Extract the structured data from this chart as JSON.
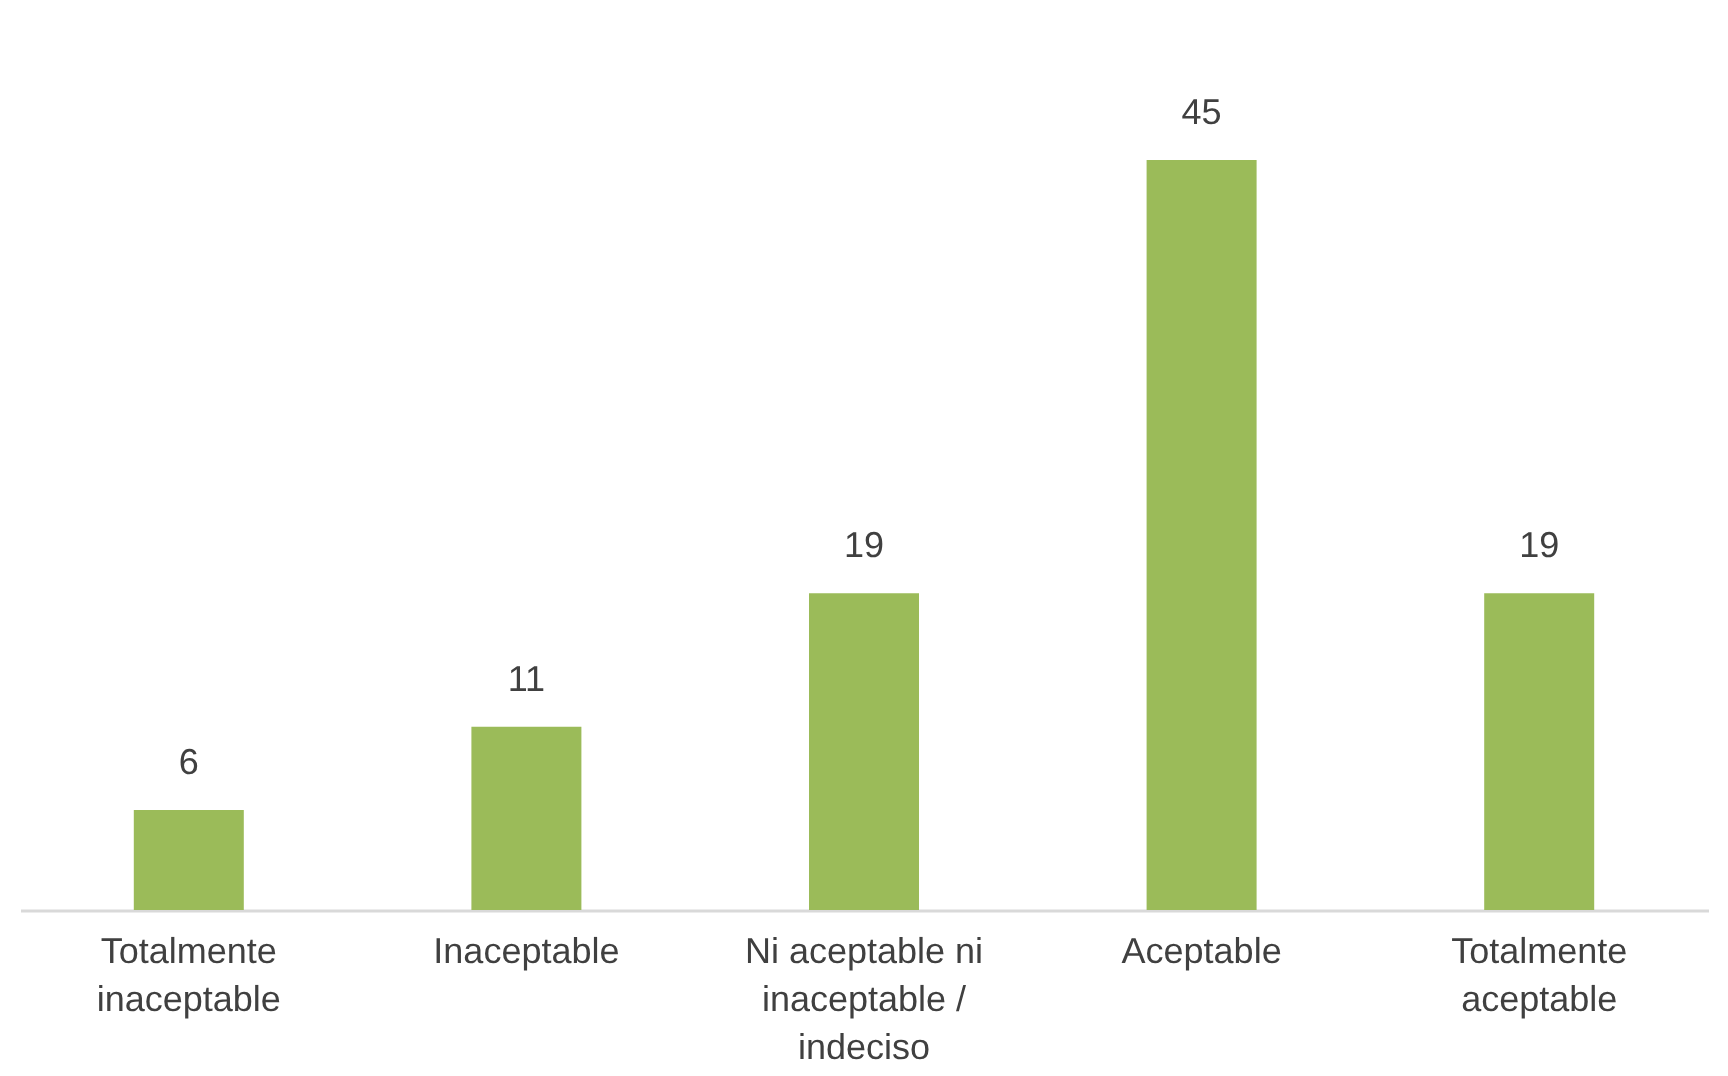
{
  "chart_data": {
    "type": "bar",
    "categories": [
      "Totalmente inaceptable",
      "Inaceptable",
      "Ni aceptable ni inaceptable / indeciso",
      "Aceptable",
      "Totalmente aceptable"
    ],
    "values": [
      6,
      11,
      19,
      45,
      19
    ],
    "color": "#9bbb59",
    "data_labels": true
  }
}
